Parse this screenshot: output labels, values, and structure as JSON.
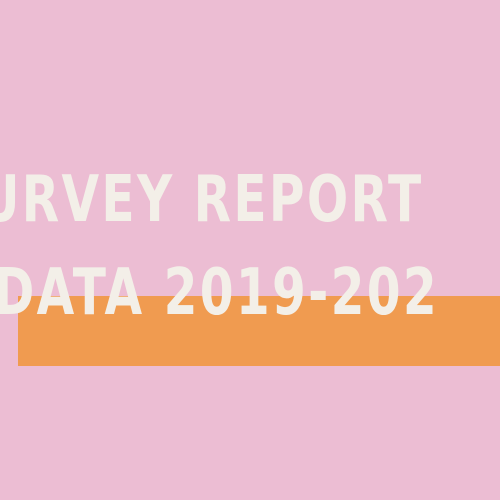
{
  "colors": {
    "background": "#ecbdd3",
    "highlight": "#f09b50",
    "text": "#f3efe8"
  },
  "headline": {
    "line1": "URVEY REPORT",
    "line2": "DATA 2019-202"
  }
}
